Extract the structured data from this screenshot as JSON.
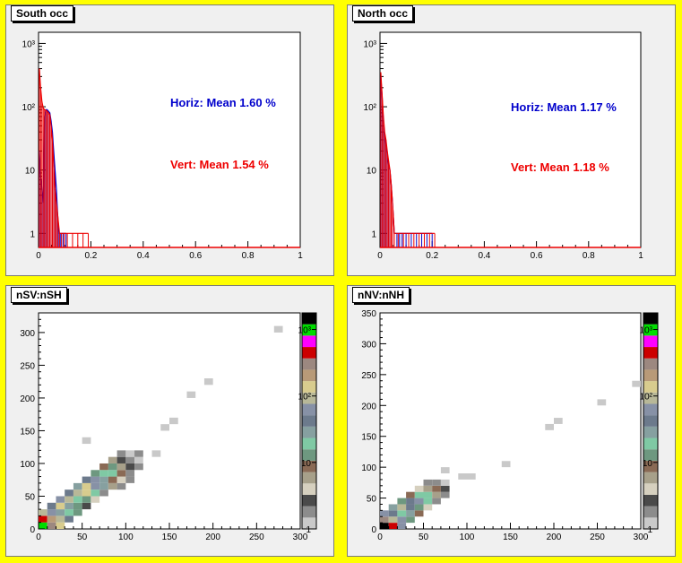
{
  "chart_data": [
    {
      "type": "histogram",
      "panel": "top-left",
      "title": "South occ",
      "y_scale": "log",
      "xlim": [
        0,
        1
      ],
      "ylim": [
        0.6,
        1500
      ],
      "x_ticks": [
        "0",
        "0.2",
        "0.4",
        "0.6",
        "0.8",
        "1"
      ],
      "y_ticks": [
        "1",
        "10",
        "10²",
        "10³"
      ],
      "annotations": [
        {
          "text": "Horiz: Mean 1.60 %",
          "color": "#0000cc"
        },
        {
          "text": "Vert: Mean 1.54 %",
          "color": "#ee0000"
        }
      ],
      "series": [
        {
          "color": "#0000cc",
          "x": [
            0.003,
            0.008,
            0.013,
            0.018,
            0.023,
            0.028,
            0.033,
            0.038,
            0.043,
            0.048,
            0.053,
            0.058,
            0.063,
            0.068,
            0.073,
            0.078,
            0.083,
            0.088,
            0.095,
            0.105
          ],
          "values": [
            20,
            8,
            5,
            3,
            70,
            90,
            90,
            85,
            80,
            60,
            40,
            20,
            10,
            5,
            2,
            1,
            1,
            1,
            1,
            1
          ]
        },
        {
          "color": "#ee0000",
          "x": [
            0.003,
            0.008,
            0.013,
            0.018,
            0.023,
            0.028,
            0.033,
            0.038,
            0.043,
            0.048,
            0.053,
            0.058,
            0.063,
            0.068,
            0.073,
            0.08,
            0.088,
            0.098,
            0.11,
            0.13,
            0.15,
            0.17,
            0.19
          ],
          "values": [
            400,
            200,
            120,
            95,
            90,
            88,
            85,
            80,
            75,
            50,
            30,
            12,
            5,
            3,
            2,
            1,
            1,
            1,
            1,
            1,
            1,
            1,
            1
          ]
        }
      ]
    },
    {
      "type": "histogram",
      "panel": "top-right",
      "title": "North occ",
      "y_scale": "log",
      "xlim": [
        0,
        1
      ],
      "ylim": [
        0.6,
        1500
      ],
      "x_ticks": [
        "0",
        "0.2",
        "0.4",
        "0.6",
        "0.8",
        "1"
      ],
      "y_ticks": [
        "1",
        "10",
        "10²",
        "10³"
      ],
      "annotations": [
        {
          "text": "Horiz: Mean 1.17 %",
          "color": "#0000cc"
        },
        {
          "text": "Vert: Mean 1.18 %",
          "color": "#ee0000"
        }
      ],
      "series": [
        {
          "color": "#0000cc",
          "x": [
            0.003,
            0.008,
            0.013,
            0.018,
            0.023,
            0.028,
            0.033,
            0.038,
            0.043,
            0.048,
            0.055,
            0.065,
            0.075,
            0.085,
            0.1,
            0.12,
            0.14,
            0.16,
            0.18,
            0.2
          ],
          "values": [
            300,
            150,
            60,
            35,
            25,
            18,
            12,
            10,
            6,
            3,
            1,
            1,
            1,
            1,
            1,
            1,
            1,
            1,
            1,
            1
          ]
        },
        {
          "color": "#ee0000",
          "x": [
            0.003,
            0.008,
            0.013,
            0.018,
            0.023,
            0.028,
            0.033,
            0.038,
            0.043,
            0.048,
            0.055,
            0.07,
            0.09,
            0.11,
            0.13,
            0.15,
            0.17,
            0.19,
            0.21
          ],
          "values": [
            350,
            160,
            70,
            40,
            30,
            20,
            14,
            10,
            6,
            3,
            1,
            1,
            1,
            1,
            1,
            1,
            1,
            1,
            1
          ]
        }
      ]
    },
    {
      "type": "heatmap",
      "panel": "bottom-left",
      "title": "nSV:nSH",
      "xlim": [
        0,
        300
      ],
      "ylim": [
        0,
        330
      ],
      "x_ticks": [
        "0",
        "50",
        "100",
        "150",
        "200",
        "250",
        "300"
      ],
      "y_ticks": [
        "0",
        "50",
        "100",
        "150",
        "200",
        "250",
        "300"
      ],
      "z_scale": "log",
      "z_ticks": [
        "1",
        "10",
        "10²",
        "10³"
      ],
      "palette": [
        "#c9c9c9",
        "#8c8c8c",
        "#4a4a4a",
        "#d6d0bf",
        "#a7a08a",
        "#8a6a55",
        "#6e9880",
        "#7fc9a4",
        "#86a0a0",
        "#6c7a8c",
        "#8791a6",
        "#b8b898",
        "#d8cc8e",
        "#b89a78",
        "#9c8880",
        "#cc0000",
        "#ff00ff",
        "#00dd00",
        "#000000"
      ],
      "cells": [
        [
          0,
          0,
          17
        ],
        [
          1,
          0,
          14
        ],
        [
          2,
          0,
          12
        ],
        [
          0,
          1,
          15
        ],
        [
          1,
          1,
          13
        ],
        [
          2,
          1,
          11
        ],
        [
          3,
          1,
          9
        ],
        [
          0,
          2,
          11
        ],
        [
          1,
          2,
          10
        ],
        [
          2,
          2,
          8
        ],
        [
          3,
          2,
          7
        ],
        [
          4,
          2,
          6
        ],
        [
          1,
          3,
          9
        ],
        [
          2,
          3,
          12
        ],
        [
          3,
          3,
          8
        ],
        [
          4,
          3,
          6
        ],
        [
          5,
          3,
          2
        ],
        [
          2,
          4,
          10
        ],
        [
          3,
          4,
          11
        ],
        [
          4,
          4,
          7
        ],
        [
          5,
          4,
          6
        ],
        [
          6,
          4,
          3
        ],
        [
          3,
          5,
          9
        ],
        [
          4,
          5,
          11
        ],
        [
          5,
          5,
          12
        ],
        [
          6,
          5,
          7
        ],
        [
          7,
          5,
          1
        ],
        [
          4,
          6,
          8
        ],
        [
          5,
          6,
          12
        ],
        [
          6,
          6,
          10
        ],
        [
          7,
          6,
          8
        ],
        [
          8,
          6,
          4
        ],
        [
          9,
          6,
          1
        ],
        [
          5,
          7,
          9
        ],
        [
          6,
          7,
          10
        ],
        [
          7,
          7,
          8
        ],
        [
          8,
          7,
          5
        ],
        [
          9,
          7,
          3
        ],
        [
          10,
          7,
          1
        ],
        [
          6,
          8,
          6
        ],
        [
          7,
          8,
          7
        ],
        [
          8,
          8,
          7
        ],
        [
          9,
          8,
          5
        ],
        [
          10,
          8,
          1
        ],
        [
          7,
          9,
          5
        ],
        [
          8,
          9,
          6
        ],
        [
          9,
          9,
          4
        ],
        [
          10,
          9,
          2
        ],
        [
          11,
          9,
          1
        ],
        [
          8,
          10,
          4
        ],
        [
          9,
          10,
          2
        ],
        [
          10,
          10,
          1
        ],
        [
          11,
          10,
          0
        ],
        [
          9,
          11,
          1
        ],
        [
          10,
          11,
          0
        ],
        [
          11,
          11,
          1
        ],
        [
          5,
          13,
          0
        ],
        [
          13,
          11,
          0
        ],
        [
          14,
          15,
          0
        ],
        [
          15,
          16,
          0
        ],
        [
          17,
          20,
          0
        ],
        [
          19,
          22,
          0
        ],
        [
          27,
          30,
          0
        ]
      ]
    },
    {
      "type": "heatmap",
      "panel": "bottom-right",
      "title": "nNV:nNH",
      "xlim": [
        0,
        300
      ],
      "ylim": [
        0,
        350
      ],
      "x_ticks": [
        "0",
        "50",
        "100",
        "150",
        "200",
        "250",
        "300"
      ],
      "y_ticks": [
        "0",
        "50",
        "100",
        "150",
        "200",
        "250",
        "300",
        "350"
      ],
      "z_scale": "log",
      "z_ticks": [
        "1",
        "10",
        "10²",
        "10³"
      ],
      "palette": [
        "#c9c9c9",
        "#8c8c8c",
        "#4a4a4a",
        "#d6d0bf",
        "#a7a08a",
        "#8a6a55",
        "#6e9880",
        "#7fc9a4",
        "#86a0a0",
        "#6c7a8c",
        "#8791a6",
        "#b8b898",
        "#d8cc8e",
        "#b89a78",
        "#9c8880",
        "#cc0000",
        "#ff00ff",
        "#00dd00",
        "#000000"
      ],
      "cells": [
        [
          0,
          0,
          18
        ],
        [
          1,
          0,
          15
        ],
        [
          2,
          0,
          10
        ],
        [
          0,
          1,
          14
        ],
        [
          1,
          1,
          11
        ],
        [
          2,
          1,
          10
        ],
        [
          3,
          1,
          6
        ],
        [
          0,
          2,
          10
        ],
        [
          1,
          2,
          9
        ],
        [
          2,
          2,
          7
        ],
        [
          3,
          2,
          8
        ],
        [
          4,
          2,
          5
        ],
        [
          1,
          3,
          8
        ],
        [
          2,
          3,
          11
        ],
        [
          3,
          3,
          9
        ],
        [
          4,
          3,
          6
        ],
        [
          5,
          3,
          3
        ],
        [
          2,
          4,
          6
        ],
        [
          3,
          4,
          9
        ],
        [
          4,
          4,
          10
        ],
        [
          5,
          4,
          7
        ],
        [
          6,
          4,
          1
        ],
        [
          3,
          5,
          5
        ],
        [
          4,
          5,
          7
        ],
        [
          5,
          5,
          7
        ],
        [
          6,
          5,
          4
        ],
        [
          7,
          5,
          1
        ],
        [
          4,
          6,
          3
        ],
        [
          5,
          6,
          4
        ],
        [
          6,
          6,
          5
        ],
        [
          7,
          6,
          2
        ],
        [
          5,
          7,
          1
        ],
        [
          6,
          7,
          1
        ],
        [
          7,
          7,
          0
        ],
        [
          7,
          9,
          0
        ],
        [
          9,
          8,
          0
        ],
        [
          10,
          8,
          0
        ],
        [
          14,
          10,
          0
        ],
        [
          19,
          16,
          0
        ],
        [
          20,
          17,
          0
        ],
        [
          25,
          20,
          0
        ],
        [
          29,
          23,
          0
        ]
      ]
    }
  ]
}
